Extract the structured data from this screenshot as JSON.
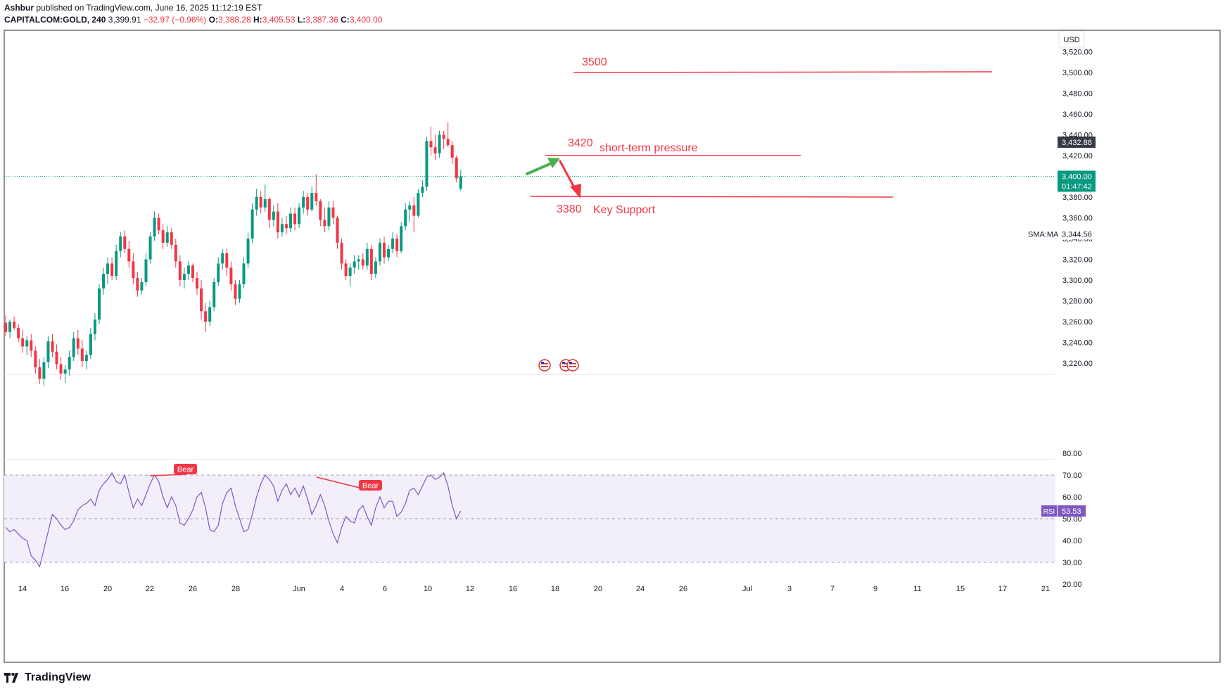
{
  "header": {
    "author": "Ashbur",
    "published_text": "published on TradingView.com, June 16, 2025 11:12:19 EST",
    "symbol": "CAPITALCOM:GOLD, 240",
    "last": "3,399.91",
    "change": "−32.97 (−0.96%)",
    "o_label": "O:",
    "o_value": "3,388.28",
    "h_label": "H:",
    "h_value": "3,405.53",
    "l_label": "L:",
    "l_value": "3,387.36",
    "c_label": "C:",
    "c_value": "3,400.00"
  },
  "footer": {
    "brand": "TradingView"
  },
  "colors": {
    "up": "#089981",
    "down": "#f23645",
    "annotation": "#f23645",
    "arrow_up": "#4caf50",
    "rsi": "#7e57c2",
    "rsi_bg": "#f3effa",
    "current_price": "#089981",
    "label_dark": "#363a45"
  },
  "chart_data": [
    {
      "type": "candlestick",
      "title": "CAPITALCOM:GOLD, 240",
      "currency_label": "USD",
      "ylim": [
        3200,
        3530
      ],
      "y_ticks": [
        "3,220.00",
        "3,240.00",
        "3,260.00",
        "3,280.00",
        "3,300.00",
        "3,320.00",
        "3,340.00",
        "3,360.00",
        "3,380.00",
        "3,400.00",
        "3,420.00",
        "3,440.00",
        "3,460.00",
        "3,480.00",
        "3,500.00",
        "3,520.00"
      ],
      "x_ticks": [
        "14",
        "16",
        "20",
        "22",
        "26",
        "28",
        "Jun",
        "4",
        "6",
        "10",
        "12",
        "16",
        "18",
        "20",
        "24",
        "26",
        "Jul",
        "3",
        "7",
        "9",
        "11",
        "15",
        "17",
        "21"
      ],
      "candles_4h": [
        [
          3259,
          3266,
          3246,
          3250
        ],
        [
          3250,
          3262,
          3244,
          3260
        ],
        [
          3260,
          3265,
          3252,
          3254
        ],
        [
          3254,
          3258,
          3240,
          3244
        ],
        [
          3244,
          3252,
          3230,
          3236
        ],
        [
          3236,
          3246,
          3228,
          3242
        ],
        [
          3242,
          3248,
          3226,
          3232
        ],
        [
          3232,
          3236,
          3210,
          3216
        ],
        [
          3216,
          3224,
          3200,
          3205
        ],
        [
          3205,
          3226,
          3198,
          3221
        ],
        [
          3221,
          3246,
          3215,
          3241
        ],
        [
          3241,
          3248,
          3226,
          3231
        ],
        [
          3231,
          3238,
          3214,
          3219
        ],
        [
          3219,
          3226,
          3204,
          3210
        ],
        [
          3210,
          3218,
          3201,
          3214
        ],
        [
          3214,
          3232,
          3208,
          3226
        ],
        [
          3226,
          3250,
          3222,
          3244
        ],
        [
          3244,
          3252,
          3228,
          3234
        ],
        [
          3234,
          3242,
          3216,
          3222
        ],
        [
          3222,
          3232,
          3214,
          3228
        ],
        [
          3228,
          3254,
          3224,
          3248
        ],
        [
          3248,
          3268,
          3242,
          3262
        ],
        [
          3262,
          3296,
          3258,
          3292
        ],
        [
          3292,
          3312,
          3286,
          3306
        ],
        [
          3306,
          3322,
          3296,
          3316
        ],
        [
          3316,
          3322,
          3300,
          3304
        ],
        [
          3304,
          3334,
          3300,
          3328
        ],
        [
          3328,
          3346,
          3322,
          3342
        ],
        [
          3342,
          3348,
          3326,
          3330
        ],
        [
          3330,
          3338,
          3312,
          3318
        ],
        [
          3318,
          3326,
          3296,
          3302
        ],
        [
          3302,
          3308,
          3284,
          3290
        ],
        [
          3290,
          3302,
          3286,
          3298
        ],
        [
          3298,
          3326,
          3294,
          3320
        ],
        [
          3320,
          3346,
          3316,
          3342
        ],
        [
          3342,
          3366,
          3338,
          3360
        ],
        [
          3360,
          3364,
          3344,
          3348
        ],
        [
          3348,
          3354,
          3330,
          3336
        ],
        [
          3336,
          3352,
          3332,
          3346
        ],
        [
          3346,
          3350,
          3330,
          3334
        ],
        [
          3334,
          3340,
          3312,
          3318
        ],
        [
          3318,
          3324,
          3294,
          3300
        ],
        [
          3300,
          3312,
          3292,
          3306
        ],
        [
          3306,
          3318,
          3300,
          3314
        ],
        [
          3314,
          3316,
          3298,
          3302
        ],
        [
          3302,
          3308,
          3286,
          3292
        ],
        [
          3292,
          3300,
          3262,
          3270
        ],
        [
          3270,
          3278,
          3250,
          3260
        ],
        [
          3260,
          3280,
          3256,
          3274
        ],
        [
          3274,
          3302,
          3270,
          3298
        ],
        [
          3298,
          3322,
          3294,
          3316
        ],
        [
          3316,
          3330,
          3310,
          3326
        ],
        [
          3326,
          3330,
          3304,
          3312
        ],
        [
          3312,
          3318,
          3290,
          3296
        ],
        [
          3296,
          3300,
          3276,
          3282
        ],
        [
          3282,
          3300,
          3278,
          3296
        ],
        [
          3296,
          3322,
          3292,
          3316
        ],
        [
          3316,
          3346,
          3312,
          3340
        ],
        [
          3340,
          3374,
          3336,
          3368
        ],
        [
          3368,
          3388,
          3362,
          3380
        ],
        [
          3380,
          3386,
          3364,
          3370
        ],
        [
          3370,
          3392,
          3366,
          3378
        ],
        [
          3378,
          3380,
          3350,
          3358
        ],
        [
          3358,
          3372,
          3352,
          3366
        ],
        [
          3366,
          3374,
          3340,
          3346
        ],
        [
          3346,
          3360,
          3342,
          3354
        ],
        [
          3354,
          3362,
          3344,
          3350
        ],
        [
          3350,
          3370,
          3346,
          3364
        ],
        [
          3364,
          3370,
          3348,
          3354
        ],
        [
          3354,
          3374,
          3350,
          3370
        ],
        [
          3370,
          3386,
          3364,
          3380
        ],
        [
          3380,
          3384,
          3362,
          3368
        ],
        [
          3368,
          3390,
          3366,
          3384
        ],
        [
          3384,
          3402,
          3372,
          3376
        ],
        [
          3376,
          3378,
          3352,
          3358
        ],
        [
          3358,
          3370,
          3346,
          3352
        ],
        [
          3352,
          3376,
          3348,
          3370
        ],
        [
          3370,
          3376,
          3354,
          3360
        ],
        [
          3360,
          3362,
          3330,
          3336
        ],
        [
          3336,
          3340,
          3310,
          3316
        ],
        [
          3316,
          3320,
          3300,
          3304
        ],
        [
          3304,
          3316,
          3294,
          3312
        ],
        [
          3312,
          3324,
          3306,
          3318
        ],
        [
          3318,
          3324,
          3310,
          3320
        ],
        [
          3320,
          3326,
          3310,
          3314
        ],
        [
          3314,
          3336,
          3310,
          3330
        ],
        [
          3330,
          3334,
          3300,
          3306
        ],
        [
          3306,
          3322,
          3302,
          3318
        ],
        [
          3318,
          3340,
          3314,
          3336
        ],
        [
          3336,
          3342,
          3316,
          3322
        ],
        [
          3322,
          3334,
          3318,
          3330
        ],
        [
          3330,
          3346,
          3326,
          3340
        ],
        [
          3340,
          3344,
          3322,
          3328
        ],
        [
          3328,
          3356,
          3326,
          3352
        ],
        [
          3352,
          3374,
          3348,
          3368
        ],
        [
          3368,
          3376,
          3356,
          3372
        ],
        [
          3372,
          3380,
          3346,
          3362
        ],
        [
          3362,
          3388,
          3360,
          3384
        ],
        [
          3384,
          3396,
          3380,
          3390
        ],
        [
          3390,
          3438,
          3386,
          3434
        ],
        [
          3434,
          3448,
          3420,
          3428
        ],
        [
          3428,
          3440,
          3416,
          3422
        ],
        [
          3422,
          3444,
          3418,
          3440
        ],
        [
          3440,
          3444,
          3426,
          3436
        ],
        [
          3436,
          3452,
          3428,
          3430
        ],
        [
          3430,
          3434,
          3412,
          3418
        ],
        [
          3418,
          3420,
          3394,
          3398
        ],
        [
          3388,
          3406,
          3386,
          3400
        ]
      ],
      "levels": [
        {
          "value": 3500,
          "label": "3500"
        },
        {
          "value": 3420,
          "label": "3420",
          "note": "short-term pressure"
        },
        {
          "value": 3380,
          "label": "3380",
          "note": "Key Support"
        }
      ],
      "price_tags": {
        "high": "3,432.88",
        "current": "3,400.00",
        "countdown": "01:47:42",
        "sma_label": "SMA:MA",
        "sma_value": "3,344.56"
      }
    },
    {
      "type": "line",
      "title": "RSI",
      "ylim": [
        25,
        85
      ],
      "y_ticks": [
        "20.00",
        "30.00",
        "40.00",
        "50.00",
        "60.00",
        "70.00",
        "80.00"
      ],
      "levels": [
        30,
        50,
        70
      ],
      "value_label": "53.53",
      "indicator_label": "RSI",
      "divergence_labels": [
        "Bear",
        "Bear"
      ],
      "values": [
        46,
        44,
        45,
        43,
        41,
        40,
        33,
        31,
        28,
        36,
        44,
        52,
        50,
        47,
        45,
        46,
        49,
        54,
        56,
        57,
        59,
        56,
        63,
        66,
        68,
        71,
        67,
        66,
        70,
        62,
        55,
        59,
        56,
        61,
        66,
        70,
        67,
        60,
        55,
        60,
        56,
        48,
        47,
        50,
        54,
        60,
        62,
        55,
        45,
        44,
        47,
        57,
        62,
        64,
        56,
        50,
        44,
        45,
        52,
        60,
        66,
        70,
        68,
        65,
        58,
        63,
        66,
        61,
        64,
        60,
        65,
        59,
        52,
        56,
        61,
        56,
        49,
        43,
        39,
        46,
        51,
        49,
        48,
        54,
        56,
        51,
        47,
        55,
        60,
        55,
        58,
        58,
        51,
        53,
        57,
        63,
        64,
        61,
        65,
        69,
        70,
        68,
        69,
        71,
        65,
        56,
        50,
        53.53
      ]
    }
  ]
}
